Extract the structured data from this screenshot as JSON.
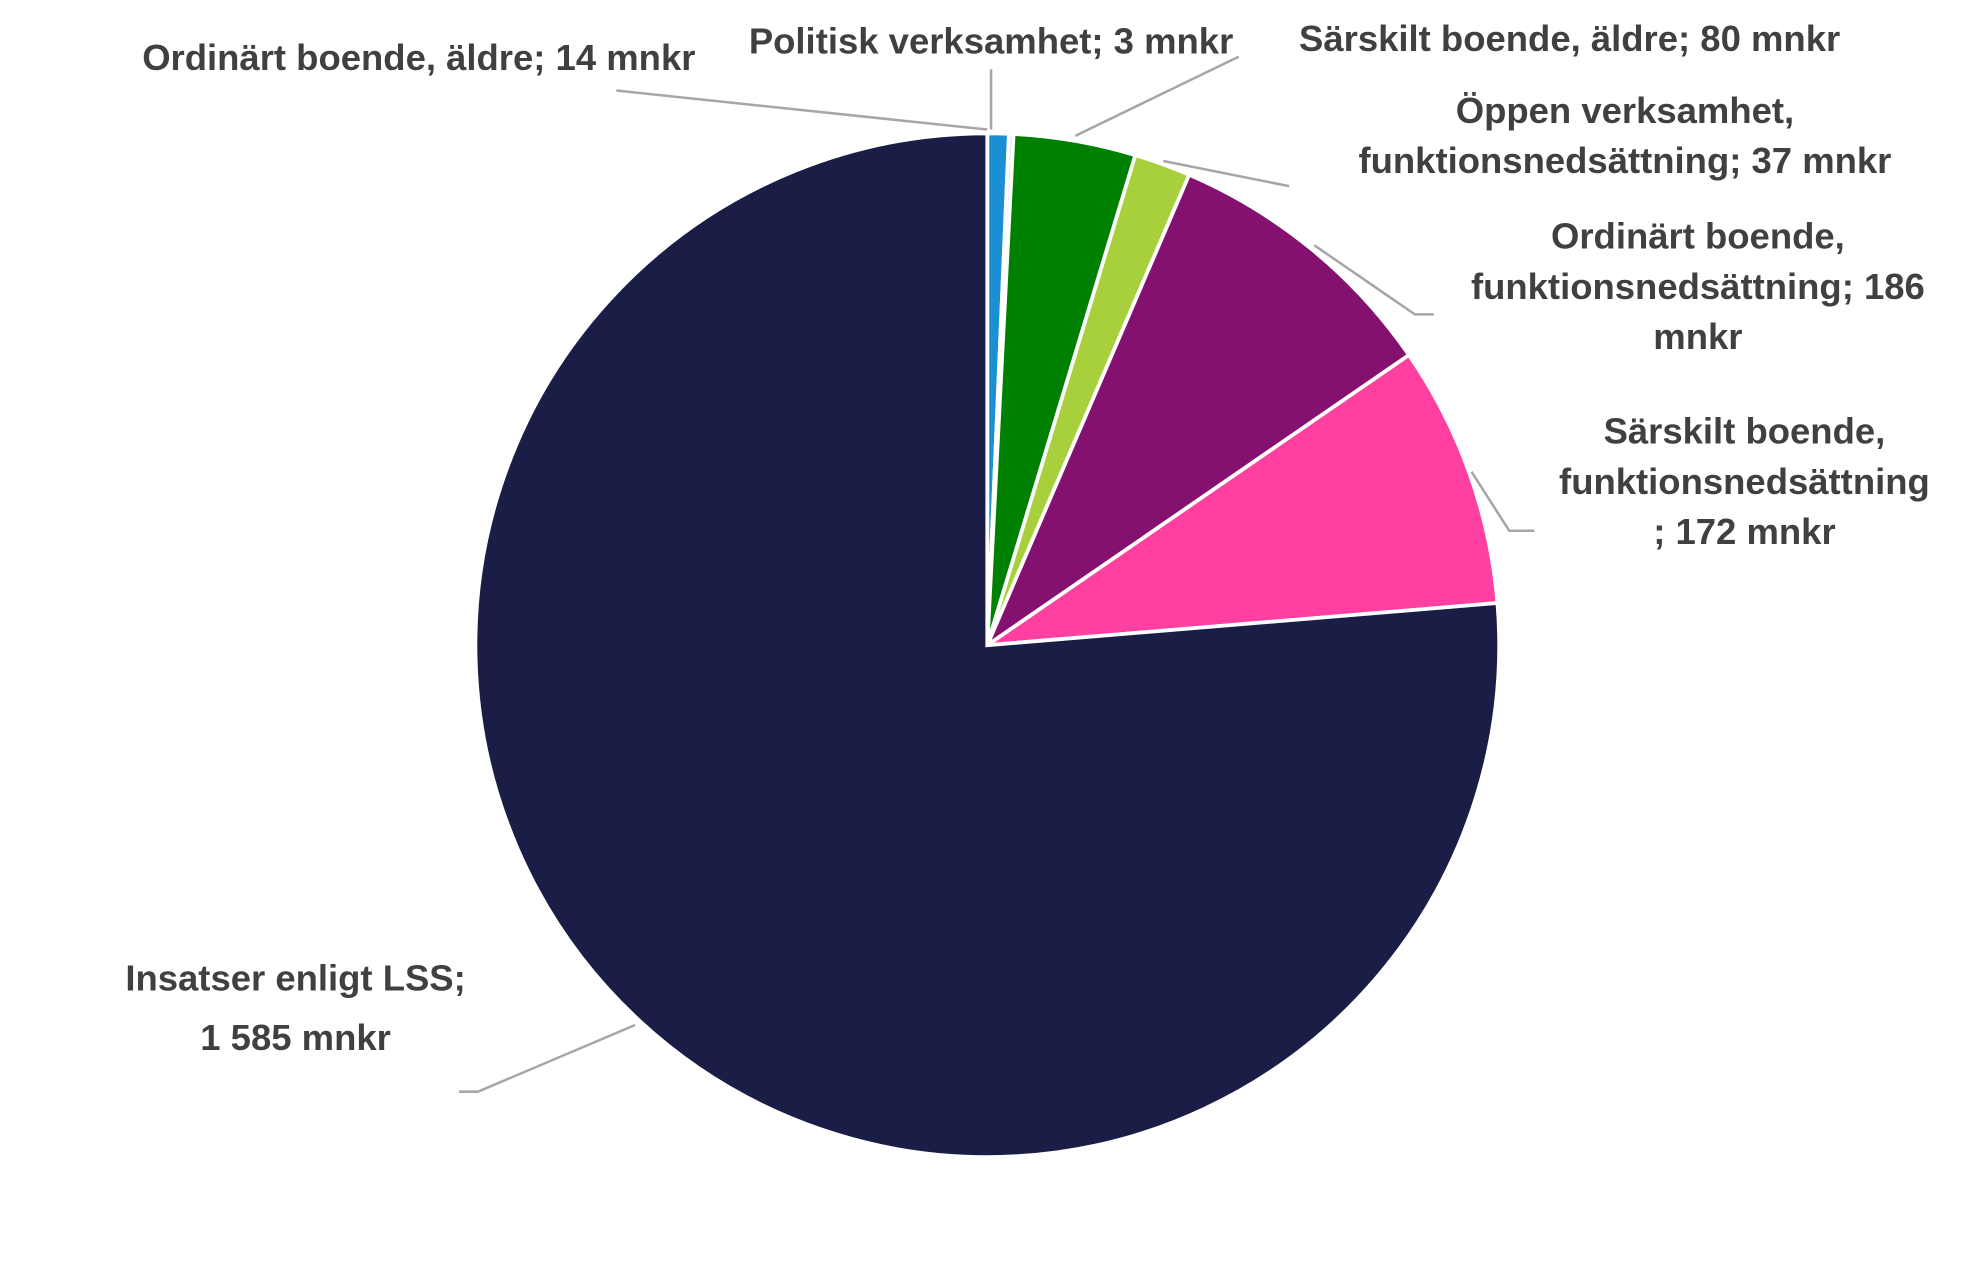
{
  "chart_data": {
    "type": "pie",
    "values": [
      14,
      3,
      80,
      37,
      186,
      172,
      1585
    ],
    "value_labels": [
      [
        "Ordinärt boende, äldre; 14 mnkr"
      ],
      [
        "Politisk verksamhet; 3 mnkr"
      ],
      [
        "Särskilt boende, äldre; 80 mnkr"
      ],
      [
        "Öppen verksamhet,",
        "funktionsnedsättning; 37 mnkr"
      ],
      [
        "Ordinärt boende,",
        "funktionsnedsättning; 186",
        "mnkr"
      ],
      [
        "Särskilt boende,",
        "funktionsnedsättning",
        "; 172 mnkr"
      ],
      [
        "Insatser enligt LSS;",
        "1 585 mnkr"
      ]
    ],
    "colors": [
      "#1b8fd2",
      "#d9d9d9",
      "#008000",
      "#a8d03c",
      "#84106f",
      "#ff40a0",
      "#1a1d45"
    ]
  }
}
